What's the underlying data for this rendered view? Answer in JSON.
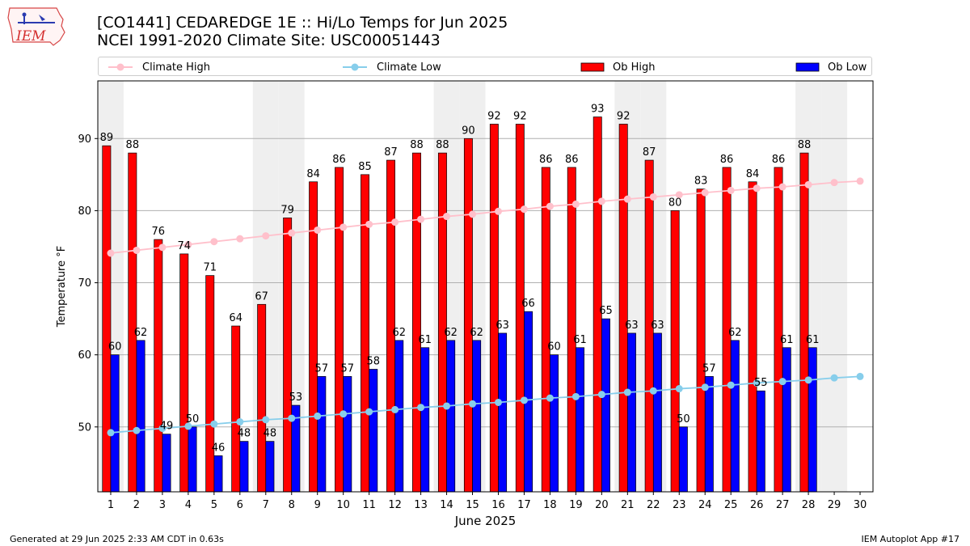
{
  "header": {
    "logo_text": "IEM",
    "title_line1": "[CO1441] CEDAREDGE 1E :: Hi/Lo Temps for Jun 2025",
    "title_line2": "NCEI 1991-2020 Climate Site: USC00051443"
  },
  "legend": {
    "items": [
      {
        "label": "Climate High",
        "kind": "line",
        "color": "#ffc0cb"
      },
      {
        "label": "Climate Low",
        "kind": "line",
        "color": "#87ceeb"
      },
      {
        "label": "Ob High",
        "kind": "bar",
        "color": "#ff0000"
      },
      {
        "label": "Ob Low",
        "kind": "bar",
        "color": "#0000ff"
      }
    ]
  },
  "footer": {
    "left": "Generated at 29 Jun 2025 2:33 AM CDT in 0.63s",
    "right": "IEM Autoplot App #17"
  },
  "chart_data": {
    "type": "bar",
    "xlabel": "June 2025",
    "ylabel": "Temperature °F",
    "ylim": [
      41,
      98
    ],
    "yticks": [
      50,
      60,
      70,
      80,
      90
    ],
    "grid": "horizontal",
    "legend_placement": "top",
    "categories": [
      "1",
      "2",
      "3",
      "4",
      "5",
      "6",
      "7",
      "8",
      "9",
      "10",
      "11",
      "12",
      "13",
      "14",
      "15",
      "16",
      "17",
      "18",
      "19",
      "20",
      "21",
      "22",
      "23",
      "24",
      "25",
      "26",
      "27",
      "28",
      "29",
      "30"
    ],
    "weekend_days": [
      1,
      7,
      8,
      14,
      15,
      21,
      22,
      28,
      29
    ],
    "series": [
      {
        "name": "Ob High",
        "type": "bar",
        "color": "#ff0000",
        "values": [
          89,
          88,
          76,
          74,
          71,
          64,
          67,
          79,
          84,
          86,
          85,
          87,
          88,
          88,
          90,
          92,
          92,
          86,
          86,
          93,
          92,
          87,
          80,
          83,
          86,
          84,
          86,
          88,
          null,
          null
        ]
      },
      {
        "name": "Ob Low",
        "type": "bar",
        "color": "#0000ff",
        "values": [
          60,
          62,
          49,
          50,
          46,
          48,
          48,
          53,
          57,
          57,
          58,
          62,
          61,
          62,
          62,
          63,
          66,
          60,
          61,
          65,
          63,
          63,
          50,
          57,
          62,
          55,
          61,
          61,
          null,
          null
        ]
      },
      {
        "name": "Climate High",
        "type": "line",
        "color": "#ffc0cb",
        "values": [
          74.1,
          74.5,
          74.9,
          75.3,
          75.7,
          76.1,
          76.5,
          76.9,
          77.3,
          77.7,
          78.1,
          78.4,
          78.8,
          79.2,
          79.5,
          79.9,
          80.2,
          80.6,
          80.9,
          81.3,
          81.6,
          81.9,
          82.2,
          82.5,
          82.8,
          83.1,
          83.3,
          83.6,
          83.9,
          84.1
        ]
      },
      {
        "name": "Climate Low",
        "type": "line",
        "color": "#87ceeb",
        "values": [
          49.2,
          49.5,
          49.8,
          50.1,
          50.4,
          50.7,
          51.0,
          51.2,
          51.5,
          51.8,
          52.1,
          52.4,
          52.7,
          52.9,
          53.2,
          53.4,
          53.7,
          54.0,
          54.2,
          54.5,
          54.8,
          55.0,
          55.3,
          55.5,
          55.8,
          56.1,
          56.3,
          56.5,
          56.8,
          57.0
        ]
      }
    ]
  }
}
